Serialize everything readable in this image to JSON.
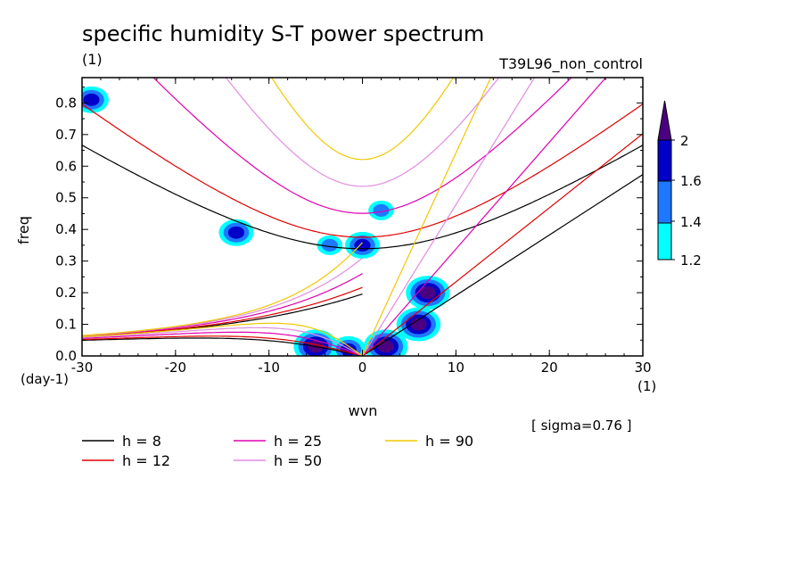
{
  "chart_data": {
    "type": "contour",
    "title": "specific humidity S-T power spectrum",
    "subtitle_left": "(1)",
    "subtitle_right": "T39L96_non_control",
    "xlabel": "wvn",
    "ylabel": "freq",
    "x_unit": "(1)",
    "y_unit": "(day-1)",
    "xlim": [
      -30,
      30
    ],
    "ylim": [
      0,
      0.88
    ],
    "x_ticks": [
      "-30",
      "-20",
      "-10",
      "0",
      "10",
      "20",
      "30"
    ],
    "y_ticks": [
      "0.0",
      "0.1",
      "0.2",
      "0.3",
      "0.4",
      "0.5",
      "0.6",
      "0.7",
      "0.8"
    ],
    "annotation": "[ sigma=0.76 ]",
    "colorbar": {
      "levels": [
        "1.2",
        "1.4",
        "1.6",
        "2"
      ],
      "colors": [
        "#00ffff",
        "#1e78ff",
        "#0000c8",
        "#4b0082"
      ]
    },
    "dispersion_curves": [
      {
        "label": "h =  8",
        "h": 8,
        "color": "#000000"
      },
      {
        "label": "h = 12",
        "h": 12,
        "color": "#e00000"
      },
      {
        "label": "h = 25",
        "h": 25,
        "color": "#e000b0"
      },
      {
        "label": "h = 50",
        "h": 50,
        "color": "#e08ce0"
      },
      {
        "label": "h = 90",
        "h": 90,
        "color": "#f0c800"
      }
    ],
    "spectral_peaks": [
      {
        "x": -29,
        "y": 0.81,
        "level": 3
      },
      {
        "x": -13.5,
        "y": 0.39,
        "level": 3
      },
      {
        "x": -5,
        "y": 0.03,
        "level": 4
      },
      {
        "x": -3.5,
        "y": 0.35,
        "level": 2
      },
      {
        "x": 0,
        "y": 0.35,
        "level": 3
      },
      {
        "x": 2,
        "y": 0.46,
        "level": 2
      },
      {
        "x": 2.5,
        "y": 0.03,
        "level": 4
      },
      {
        "x": 6,
        "y": 0.1,
        "level": 4
      },
      {
        "x": 7,
        "y": 0.2,
        "level": 4
      },
      {
        "x": -1.5,
        "y": 0.02,
        "level": 3
      }
    ]
  }
}
